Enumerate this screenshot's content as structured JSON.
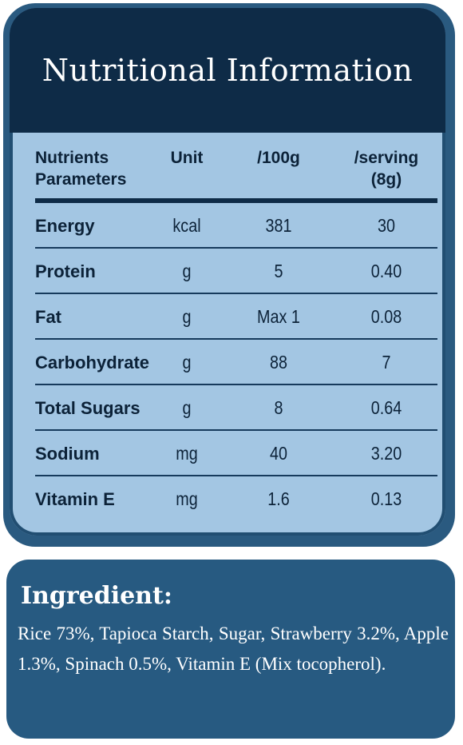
{
  "title": "Nutritional Information",
  "columns": {
    "nutrient_line1": "Nutrients",
    "nutrient_line2": "Parameters",
    "unit": "Unit",
    "per100": "/100g",
    "serving_line1": "/serving",
    "serving_line2": "(8g)"
  },
  "rows": [
    {
      "name": "Energy",
      "unit": "kcal",
      "per100": "381",
      "serving": "30"
    },
    {
      "name": "Protein",
      "unit": "g",
      "per100": "5",
      "serving": "0.40"
    },
    {
      "name": "Fat",
      "unit": "g",
      "per100": "Max 1",
      "serving": "0.08"
    },
    {
      "name": "Carbohydrate",
      "unit": "g",
      "per100": "88",
      "serving": "7"
    },
    {
      "name": "Total Sugars",
      "unit": "g",
      "per100": "8",
      "serving": "0.64"
    },
    {
      "name": "Sodium",
      "unit": "mg",
      "per100": "40",
      "serving": "3.20"
    },
    {
      "name": "Vitamin E",
      "unit": "mg",
      "per100": "1.6",
      "serving": "0.13"
    }
  ],
  "ingredient": {
    "title": "Ingredient:",
    "text": "Rice 73%, Tapioca Starch, Sugar, Strawberry 3.2%, Apple 1.3%, Spinach 0.5%, Vitamin E (Mix tocopherol)."
  },
  "colors": {
    "header_bg": "#0e2b47",
    "table_bg": "#a3c6e3",
    "frame": "#2a5a80",
    "ingredient_bg": "#275a81"
  }
}
